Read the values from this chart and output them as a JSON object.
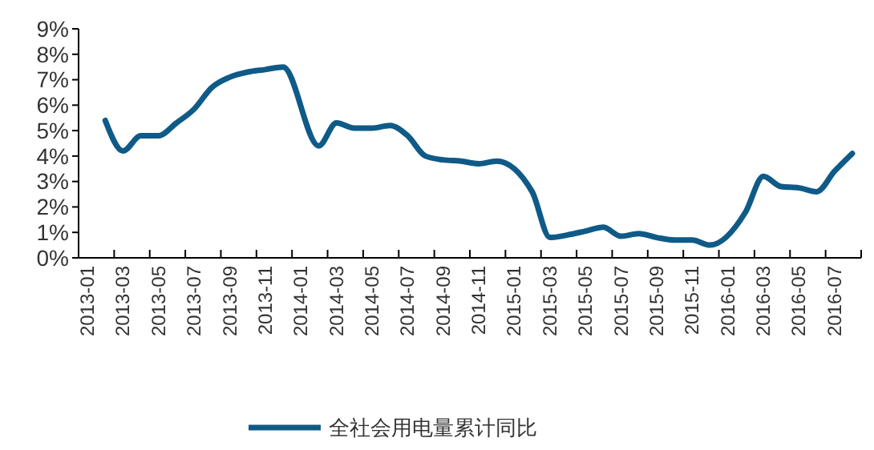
{
  "chart_data": {
    "type": "line",
    "categories": [
      "2013-01",
      null,
      "2013-03",
      null,
      "2013-05",
      null,
      "2013-07",
      null,
      "2013-09",
      null,
      "2013-11",
      null,
      "2014-01",
      null,
      "2014-03",
      null,
      "2014-05",
      null,
      "2014-07",
      null,
      "2014-09",
      null,
      "2014-11",
      null,
      "2015-01",
      null,
      "2015-03",
      null,
      "2015-05",
      null,
      "2015-07",
      null,
      "2015-09",
      null,
      "2015-11",
      null,
      "2016-01",
      null,
      "2016-03",
      null,
      "2016-05",
      null,
      "2016-07",
      null
    ],
    "series": [
      {
        "name": "全社会用电量累计同比",
        "color": "#0f5a87",
        "values": [
          null,
          5.4,
          4.2,
          4.8,
          4.8,
          5.3,
          5.85,
          6.7,
          7.1,
          7.3,
          7.4,
          7.5,
          null,
          4.4,
          5.3,
          5.1,
          5.1,
          5.2,
          4.8,
          4.0,
          3.85,
          3.8,
          3.7,
          3.8,
          null,
          2.6,
          0.8,
          0.9,
          1.05,
          1.2,
          0.85,
          0.95,
          0.8,
          0.7,
          0.7,
          0.5,
          null,
          1.8,
          3.2,
          2.8,
          2.75,
          2.6,
          3.4,
          4.1
        ]
      }
    ],
    "ylim": [
      0,
      9
    ],
    "yticks": [
      {
        "value": 0,
        "label": "0%"
      },
      {
        "value": 1,
        "label": "1%"
      },
      {
        "value": 2,
        "label": "2%"
      },
      {
        "value": 3,
        "label": "3%"
      },
      {
        "value": 4,
        "label": "4%"
      },
      {
        "value": 5,
        "label": "5%"
      },
      {
        "value": 6,
        "label": "6%"
      },
      {
        "value": 7,
        "label": "7%"
      },
      {
        "value": 8,
        "label": "8%"
      },
      {
        "value": 9,
        "label": "9%"
      }
    ],
    "grid": false,
    "legend": "bottom",
    "line_style": "solid",
    "marker": "none"
  }
}
